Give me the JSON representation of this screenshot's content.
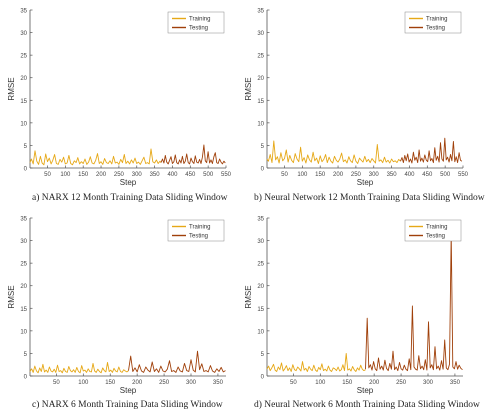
{
  "colors": {
    "training": "#E6A817",
    "testing": "#A0400A",
    "axis": "#555555",
    "tick_text": "#444444"
  },
  "chart_data": [
    {
      "type": "line",
      "caption": "a) NARX 12 Month Training Data Sliding Window",
      "xlabel": "Step",
      "ylabel": "RMSE",
      "xlim": [
        1,
        550
      ],
      "ylim": [
        0,
        35
      ],
      "xticks": [
        50,
        100,
        150,
        200,
        250,
        300,
        350,
        400,
        450,
        500,
        550
      ],
      "yticks": [
        0,
        5,
        10,
        15,
        20,
        25,
        30,
        35
      ],
      "grid": false,
      "legend": "top-right",
      "series": [
        {
          "name": "Training",
          "color": "#E6A817",
          "x": [
            1,
            5,
            10,
            15,
            20,
            25,
            30,
            35,
            40,
            45,
            50,
            55,
            60,
            65,
            70,
            75,
            80,
            85,
            90,
            95,
            100,
            105,
            110,
            115,
            120,
            125,
            130,
            135,
            140,
            145,
            150,
            155,
            160,
            165,
            170,
            175,
            180,
            185,
            190,
            195,
            200,
            205,
            210,
            215,
            220,
            225,
            230,
            235,
            240,
            245,
            250,
            255,
            260,
            265,
            270,
            275,
            280,
            285,
            290,
            295,
            300,
            305,
            310,
            315,
            320,
            325,
            330,
            335,
            340,
            345,
            350,
            355,
            360,
            365,
            368
          ],
          "y": [
            1.2,
            2.0,
            0.9,
            3.8,
            1.5,
            0.8,
            2.6,
            1.1,
            0.7,
            3.1,
            1.4,
            2.2,
            0.9,
            1.7,
            3.0,
            1.0,
            0.8,
            1.9,
            1.3,
            2.4,
            0.9,
            1.1,
            2.8,
            1.0,
            0.7,
            1.6,
            1.2,
            2.3,
            0.9,
            1.4,
            1.0,
            2.0,
            0.8,
            1.3,
            2.5,
            1.1,
            0.9,
            1.7,
            3.2,
            1.0,
            1.4,
            0.8,
            2.1,
            1.2,
            1.0,
            1.6,
            0.9,
            2.6,
            1.1,
            1.3,
            0.8,
            1.9,
            1.2,
            3.0,
            1.0,
            1.5,
            0.9,
            1.8,
            1.1,
            2.2,
            1.0,
            1.3,
            0.8,
            1.6,
            2.4,
            1.0,
            1.2,
            0.9,
            4.2,
            1.4,
            1.1,
            1.8,
            1.0,
            1.5,
            1.2
          ]
        },
        {
          "name": "Testing",
          "color": "#A0400A",
          "x": [
            368,
            372,
            376,
            380,
            384,
            388,
            392,
            396,
            400,
            404,
            408,
            412,
            416,
            420,
            424,
            428,
            432,
            436,
            440,
            444,
            448,
            452,
            456,
            460,
            464,
            468,
            472,
            476,
            480,
            484,
            488,
            492,
            496,
            500,
            504,
            508,
            512,
            516,
            520,
            524,
            528,
            532,
            536,
            540,
            544,
            548
          ],
          "y": [
            1.2,
            2.0,
            1.1,
            2.8,
            1.3,
            0.9,
            1.7,
            2.5,
            1.0,
            1.4,
            2.9,
            1.2,
            0.9,
            1.8,
            1.1,
            2.6,
            1.0,
            1.5,
            3.1,
            1.2,
            0.9,
            2.2,
            1.4,
            1.0,
            2.7,
            1.3,
            1.1,
            1.9,
            1.0,
            2.4,
            5.1,
            1.6,
            1.2,
            3.6,
            1.1,
            1.8,
            1.0,
            2.5,
            3.4,
            1.2,
            1.0,
            2.0,
            1.3,
            0.9,
            1.5,
            1.1
          ]
        }
      ]
    },
    {
      "type": "line",
      "caption": "b) Neural Network 12 Month Training Data Sliding Window",
      "xlabel": "Step",
      "ylabel": "RMSE",
      "xlim": [
        1,
        550
      ],
      "ylim": [
        0,
        35
      ],
      "xticks": [
        50,
        100,
        150,
        200,
        250,
        300,
        350,
        400,
        450,
        500,
        550
      ],
      "yticks": [
        0,
        5,
        10,
        15,
        20,
        25,
        30,
        35
      ],
      "grid": false,
      "legend": "top-right",
      "series": [
        {
          "name": "Training",
          "color": "#E6A817",
          "x": [
            1,
            5,
            10,
            15,
            20,
            25,
            30,
            35,
            40,
            45,
            50,
            55,
            60,
            65,
            70,
            75,
            80,
            85,
            90,
            95,
            100,
            105,
            110,
            115,
            120,
            125,
            130,
            135,
            140,
            145,
            150,
            155,
            160,
            165,
            170,
            175,
            180,
            185,
            190,
            195,
            200,
            205,
            210,
            215,
            220,
            225,
            230,
            235,
            240,
            245,
            250,
            255,
            260,
            265,
            270,
            275,
            280,
            285,
            290,
            295,
            300,
            305,
            310,
            315,
            320,
            325,
            330,
            335,
            340,
            345,
            350,
            355,
            360,
            365,
            370,
            375
          ],
          "y": [
            2.0,
            1.5,
            3.0,
            1.2,
            6.0,
            1.8,
            2.5,
            1.1,
            3.4,
            1.6,
            2.1,
            4.0,
            1.3,
            2.8,
            1.7,
            1.2,
            3.2,
            2.0,
            1.4,
            4.6,
            1.5,
            2.3,
            1.1,
            2.9,
            1.8,
            1.3,
            3.5,
            1.6,
            2.2,
            1.0,
            2.7,
            1.4,
            1.9,
            3.0,
            1.2,
            2.4,
            1.5,
            1.1,
            2.6,
            1.7,
            1.3,
            2.0,
            3.3,
            1.4,
            1.8,
            1.1,
            2.5,
            1.6,
            1.2,
            2.9,
            1.5,
            1.0,
            2.2,
            1.7,
            1.3,
            2.6,
            1.4,
            1.9,
            1.2,
            2.1,
            1.6,
            1.1,
            5.2,
            1.5,
            1.8,
            1.2,
            2.4,
            1.3,
            1.7,
            1.1,
            2.0,
            1.4,
            1.6,
            1.2,
            1.9,
            1.5
          ]
        },
        {
          "name": "Testing",
          "color": "#A0400A",
          "x": [
            375,
            379,
            383,
            387,
            391,
            395,
            399,
            403,
            407,
            411,
            415,
            419,
            423,
            427,
            431,
            435,
            439,
            443,
            447,
            451,
            455,
            459,
            463,
            467,
            471,
            475,
            479,
            483,
            487,
            491,
            495,
            499,
            503,
            507,
            511,
            515,
            519,
            523,
            527,
            531,
            535,
            539,
            543,
            547
          ],
          "y": [
            1.5,
            2.3,
            1.2,
            2.8,
            1.6,
            3.1,
            1.3,
            2.0,
            1.1,
            3.5,
            1.7,
            2.4,
            1.2,
            4.0,
            1.5,
            2.2,
            1.3,
            2.9,
            1.8,
            1.4,
            3.8,
            1.6,
            2.1,
            1.2,
            4.5,
            1.7,
            2.6,
            1.3,
            5.6,
            2.0,
            1.5,
            6.6,
            1.8,
            2.4,
            1.3,
            3.0,
            1.6,
            5.9,
            1.4,
            2.5,
            1.2,
            3.4,
            1.7,
            1.5
          ]
        }
      ]
    },
    {
      "type": "line",
      "caption": "c) NARX 6 Month Training Data Sliding Window",
      "xlabel": "Step",
      "ylabel": "RMSE",
      "xlim": [
        1,
        365
      ],
      "ylim": [
        0,
        35
      ],
      "xticks": [
        50,
        100,
        150,
        200,
        250,
        300,
        350
      ],
      "yticks": [
        0,
        5,
        10,
        15,
        20,
        25,
        30,
        35
      ],
      "grid": false,
      "legend": "top-right",
      "series": [
        {
          "name": "Training",
          "color": "#E6A817",
          "x": [
            1,
            4,
            7,
            10,
            13,
            16,
            19,
            22,
            25,
            28,
            31,
            34,
            37,
            40,
            43,
            46,
            49,
            52,
            55,
            58,
            61,
            64,
            67,
            70,
            73,
            76,
            79,
            82,
            85,
            88,
            91,
            94,
            97,
            100,
            103,
            106,
            109,
            112,
            115,
            118,
            121,
            124,
            127,
            130,
            133,
            136,
            139,
            142,
            145,
            148,
            151,
            154,
            157,
            160,
            163,
            166,
            169,
            172,
            175,
            178,
            181,
            184
          ],
          "y": [
            1.0,
            1.6,
            0.8,
            2.2,
            1.1,
            0.7,
            1.8,
            1.0,
            2.6,
            0.9,
            1.3,
            0.8,
            2.0,
            1.1,
            0.9,
            1.5,
            0.8,
            2.4,
            1.0,
            1.2,
            0.7,
            1.7,
            1.0,
            0.8,
            2.1,
            1.2,
            0.9,
            1.4,
            0.8,
            1.9,
            1.0,
            0.7,
            2.3,
            1.1,
            1.3,
            0.8,
            1.6,
            1.0,
            0.9,
            2.8,
            1.1,
            0.8,
            1.5,
            1.0,
            0.7,
            1.8,
            1.2,
            0.9,
            3.0,
            1.0,
            1.3,
            0.8,
            1.7,
            1.1,
            0.9,
            2.0,
            1.0,
            0.8,
            1.4,
            1.1,
            0.9,
            1.2
          ]
        },
        {
          "name": "Testing",
          "color": "#A0400A",
          "x": [
            184,
            188,
            192,
            196,
            200,
            204,
            208,
            212,
            216,
            220,
            224,
            228,
            232,
            236,
            240,
            244,
            248,
            252,
            256,
            260,
            264,
            268,
            272,
            276,
            280,
            284,
            288,
            292,
            296,
            300,
            304,
            308,
            312,
            316,
            320,
            324,
            328,
            332,
            336,
            340,
            344,
            348,
            352,
            356,
            360,
            364
          ],
          "y": [
            1.2,
            4.4,
            1.0,
            1.8,
            0.9,
            2.5,
            1.1,
            0.8,
            2.0,
            1.3,
            0.9,
            3.1,
            1.0,
            1.6,
            0.8,
            2.2,
            1.1,
            0.9,
            1.5,
            3.4,
            1.0,
            1.2,
            0.8,
            2.0,
            1.1,
            0.9,
            2.8,
            1.2,
            1.0,
            3.6,
            1.3,
            0.9,
            5.5,
            1.4,
            2.7,
            1.0,
            1.2,
            0.9,
            2.3,
            1.1,
            0.8,
            1.6,
            1.0,
            1.9,
            0.9,
            1.2
          ]
        }
      ]
    },
    {
      "type": "line",
      "caption": "d) Neural Network 6 Month Training Data Sliding Window",
      "xlabel": "Step",
      "ylabel": "RMSE",
      "xlim": [
        1,
        365
      ],
      "ylim": [
        0,
        35
      ],
      "xticks": [
        50,
        100,
        150,
        200,
        250,
        300,
        350
      ],
      "yticks": [
        0,
        5,
        10,
        15,
        20,
        25,
        30,
        35
      ],
      "grid": false,
      "legend": "top-right",
      "series": [
        {
          "name": "Training",
          "color": "#E6A817",
          "x": [
            1,
            4,
            7,
            10,
            13,
            16,
            19,
            22,
            25,
            28,
            31,
            34,
            37,
            40,
            43,
            46,
            49,
            52,
            55,
            58,
            61,
            64,
            67,
            70,
            73,
            76,
            79,
            82,
            85,
            88,
            91,
            94,
            97,
            100,
            103,
            106,
            109,
            112,
            115,
            118,
            121,
            124,
            127,
            130,
            133,
            136,
            139,
            142,
            145,
            148,
            151,
            154,
            157,
            160,
            163,
            166,
            169,
            172,
            175,
            178,
            181,
            184
          ],
          "y": [
            1.5,
            2.2,
            1.2,
            1.8,
            2.6,
            1.3,
            1.0,
            2.0,
            1.4,
            2.9,
            1.1,
            1.6,
            2.3,
            1.2,
            1.8,
            1.0,
            2.5,
            1.4,
            1.2,
            2.0,
            1.6,
            1.1,
            3.2,
            1.3,
            1.7,
            1.0,
            2.1,
            1.5,
            1.2,
            2.4,
            1.3,
            1.0,
            1.9,
            1.4,
            2.7,
            1.2,
            1.5,
            1.1,
            2.2,
            1.3,
            1.0,
            1.8,
            1.6,
            1.2,
            2.0,
            1.1,
            1.4,
            2.5,
            1.2,
            5.0,
            1.3,
            1.6,
            1.1,
            2.1,
            1.4,
            1.0,
            1.8,
            1.3,
            2.4,
            1.5,
            1.2,
            1.4
          ]
        },
        {
          "name": "Testing",
          "color": "#A0400A",
          "x": [
            184,
            187,
            190,
            193,
            196,
            199,
            202,
            205,
            208,
            211,
            214,
            217,
            220,
            223,
            226,
            229,
            232,
            235,
            238,
            241,
            244,
            247,
            250,
            253,
            256,
            259,
            262,
            265,
            268,
            271,
            274,
            277,
            280,
            283,
            286,
            289,
            292,
            295,
            298,
            301,
            304,
            307,
            310,
            313,
            316,
            319,
            322,
            325,
            328,
            331,
            334,
            337,
            340,
            343,
            346,
            349,
            352,
            355,
            358,
            361,
            364
          ],
          "y": [
            1.5,
            12.8,
            1.8,
            2.5,
            1.3,
            3.2,
            1.6,
            1.2,
            4.0,
            1.5,
            2.2,
            1.3,
            3.5,
            1.7,
            1.2,
            2.8,
            1.5,
            5.5,
            1.4,
            2.0,
            1.2,
            3.0,
            1.6,
            1.3,
            2.4,
            1.5,
            1.2,
            3.8,
            1.4,
            15.5,
            2.0,
            1.5,
            1.3,
            4.5,
            1.6,
            2.2,
            1.4,
            3.6,
            1.3,
            12.0,
            1.8,
            2.5,
            1.4,
            6.5,
            1.6,
            2.2,
            1.3,
            3.4,
            1.5,
            8.0,
            1.8,
            1.4,
            2.6,
            31.5,
            2.0,
            1.6,
            3.2,
            1.5,
            2.4,
            1.7,
            1.4
          ]
        }
      ]
    }
  ]
}
